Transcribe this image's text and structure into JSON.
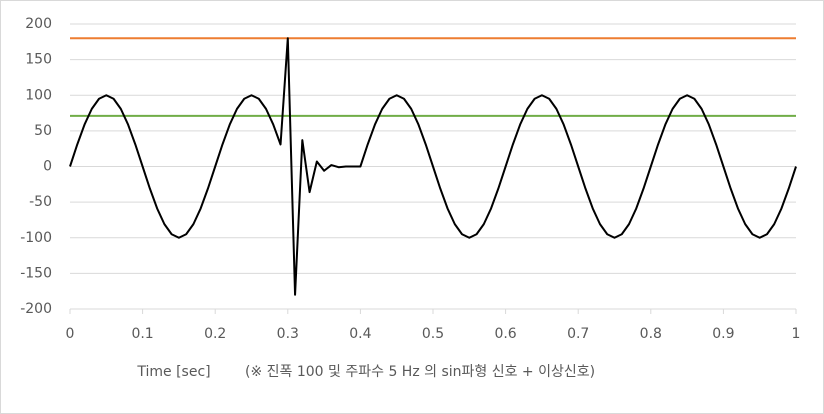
{
  "chart_data": {
    "type": "line",
    "x_label": "Time [sec]",
    "note": "(※ 진폭 100 및 주파수 5 Hz 의 sin파형 신호 + 이상신호)",
    "x": [
      0,
      0.01,
      0.02,
      0.03,
      0.04,
      0.05,
      0.06,
      0.07,
      0.08,
      0.09,
      0.1,
      0.11,
      0.12,
      0.13,
      0.14,
      0.15,
      0.16,
      0.17,
      0.18,
      0.19,
      0.2,
      0.21,
      0.22,
      0.23,
      0.24,
      0.25,
      0.26,
      0.27,
      0.28,
      0.29,
      0.3,
      0.31,
      0.32,
      0.33,
      0.34,
      0.35,
      0.36,
      0.37,
      0.38,
      0.39,
      0.4,
      0.41,
      0.42,
      0.43,
      0.44,
      0.45,
      0.46,
      0.47,
      0.48,
      0.49,
      0.5,
      0.51,
      0.52,
      0.53,
      0.54,
      0.55,
      0.56,
      0.57,
      0.58,
      0.59,
      0.6,
      0.61,
      0.62,
      0.63,
      0.64,
      0.65,
      0.66,
      0.67,
      0.68,
      0.69,
      0.7,
      0.71,
      0.72,
      0.73,
      0.74,
      0.75,
      0.76,
      0.77,
      0.78,
      0.79,
      0.8,
      0.81,
      0.82,
      0.83,
      0.84,
      0.85,
      0.86,
      0.87,
      0.88,
      0.89,
      0.9,
      0.91,
      0.92,
      0.93,
      0.94,
      0.95,
      0.96,
      0.97,
      0.98,
      0.99,
      1
    ],
    "series": [
      {
        "color": "#000000",
        "values": [
          0,
          30.9,
          58.8,
          80.9,
          95.1,
          100,
          95.1,
          80.9,
          58.8,
          30.9,
          0,
          -30.9,
          -58.8,
          -80.9,
          -95.1,
          -100,
          -95.1,
          -80.9,
          -58.8,
          -30.9,
          0,
          30.9,
          58.8,
          80.9,
          95.1,
          100,
          95.1,
          80.9,
          58.8,
          30.9,
          180,
          -180,
          37,
          -36,
          7,
          -6,
          2,
          -1,
          0,
          0,
          0,
          30.9,
          58.8,
          80.9,
          95.1,
          100,
          95.1,
          80.9,
          58.8,
          30.9,
          0,
          -30.9,
          -58.8,
          -80.9,
          -95.1,
          -100,
          -95.1,
          -80.9,
          -58.8,
          -30.9,
          0,
          30.9,
          58.8,
          80.9,
          95.1,
          100,
          95.1,
          80.9,
          58.8,
          30.9,
          0,
          -30.9,
          -58.8,
          -80.9,
          -95.1,
          -100,
          -95.1,
          -80.9,
          -58.8,
          -30.9,
          0,
          30.9,
          58.8,
          80.9,
          95.1,
          100,
          95.1,
          80.9,
          58.8,
          30.9,
          0,
          -30.9,
          -58.8,
          -80.9,
          -95.1,
          -100,
          -95.1,
          -80.9,
          -58.8,
          -30.9,
          0
        ]
      }
    ],
    "hlines": [
      {
        "value": 180,
        "color": "#ed7d31"
      },
      {
        "value": 71,
        "color": "#70ad47"
      }
    ],
    "xlim": [
      0,
      1
    ],
    "xticks": [
      0,
      0.1,
      0.2,
      0.3,
      0.4,
      0.5,
      0.6,
      0.7,
      0.8,
      0.9,
      1
    ],
    "ylim": [
      -200,
      200
    ],
    "yticks": [
      -200,
      -150,
      -100,
      -50,
      0,
      50,
      100,
      150,
      200
    ],
    "grid": true
  }
}
